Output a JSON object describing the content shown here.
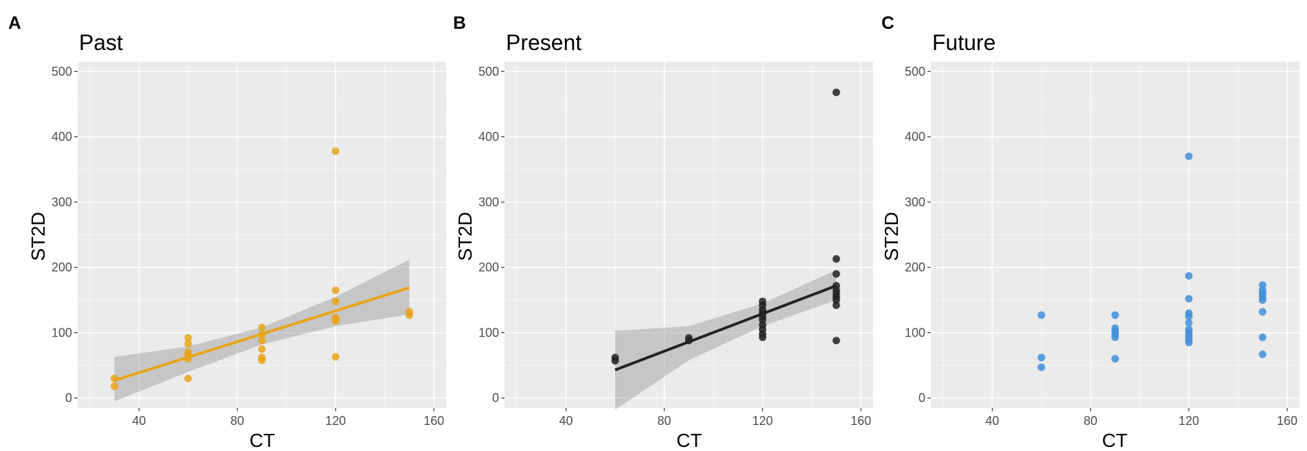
{
  "figure": {
    "panel_labels": [
      "A",
      "B",
      "C"
    ]
  },
  "chart_data": [
    {
      "type": "scatter",
      "panel": "A",
      "title": "Past",
      "xlabel": "CT",
      "ylabel": "ST2D",
      "xlim": [
        15,
        165
      ],
      "ylim": [
        -15,
        515
      ],
      "xticks": [
        40,
        80,
        120,
        160
      ],
      "yticks": [
        0,
        100,
        200,
        300,
        400,
        500
      ],
      "grid": true,
      "color": "#E8A416",
      "points": {
        "x": [
          30,
          30,
          60,
          60,
          60,
          60,
          60,
          60,
          90,
          90,
          90,
          90,
          90,
          90,
          120,
          120,
          120,
          120,
          120,
          120,
          120,
          150,
          150
        ],
        "y": [
          18,
          30,
          30,
          60,
          65,
          70,
          83,
          92,
          58,
          62,
          75,
          88,
          97,
          108,
          63,
          118,
          123,
          148,
          165,
          378,
          120,
          127,
          132
        ]
      },
      "fit": {
        "x": [
          30,
          150
        ],
        "y": [
          27,
          169
        ]
      },
      "confidence_band": {
        "x": [
          30,
          60,
          90,
          120,
          150
        ],
        "lower": [
          -5,
          40,
          82,
          110,
          128
        ],
        "upper": [
          63,
          79,
          108,
          155,
          212
        ]
      }
    },
    {
      "type": "scatter",
      "panel": "B",
      "title": "Present",
      "xlabel": "CT",
      "ylabel": "ST2D",
      "xlim": [
        15,
        165
      ],
      "ylim": [
        -15,
        515
      ],
      "xticks": [
        40,
        80,
        120,
        160
      ],
      "yticks": [
        0,
        100,
        200,
        300,
        400,
        500
      ],
      "grid": true,
      "color": "#222222",
      "points": {
        "x": [
          60,
          60,
          90,
          90,
          120,
          120,
          120,
          120,
          120,
          120,
          120,
          120,
          120,
          120,
          150,
          150,
          150,
          150,
          150,
          150,
          150,
          150,
          150,
          150
        ],
        "y": [
          57,
          62,
          88,
          92,
          93,
          98,
          105,
          112,
          120,
          125,
          130,
          135,
          142,
          148,
          88,
          142,
          150,
          155,
          160,
          165,
          172,
          190,
          213,
          468
        ]
      },
      "fit": {
        "x": [
          60,
          150
        ],
        "y": [
          43,
          172
        ]
      },
      "confidence_band": {
        "x": [
          60,
          90,
          120,
          150
        ],
        "lower": [
          -18,
          58,
          110,
          150
        ],
        "upper": [
          103,
          110,
          145,
          196
        ]
      }
    },
    {
      "type": "scatter",
      "panel": "C",
      "title": "Future",
      "xlabel": "CT",
      "ylabel": "ST2D",
      "xlim": [
        15,
        165
      ],
      "ylim": [
        -15,
        515
      ],
      "xticks": [
        40,
        80,
        120,
        160
      ],
      "yticks": [
        0,
        100,
        200,
        300,
        400,
        500
      ],
      "grid": true,
      "color": "#3F8FDA",
      "points": {
        "x": [
          60,
          60,
          60,
          90,
          90,
          90,
          90,
          90,
          90,
          120,
          120,
          120,
          120,
          120,
          120,
          120,
          120,
          120,
          120,
          120,
          150,
          150,
          150,
          150,
          150,
          150,
          150,
          150
        ],
        "y": [
          47,
          62,
          127,
          60,
          93,
          98,
          102,
          107,
          127,
          85,
          90,
          100,
          105,
          115,
          125,
          130,
          152,
          187,
          370,
          95,
          67,
          93,
          132,
          150,
          155,
          160,
          165,
          173
        ]
      }
    }
  ]
}
